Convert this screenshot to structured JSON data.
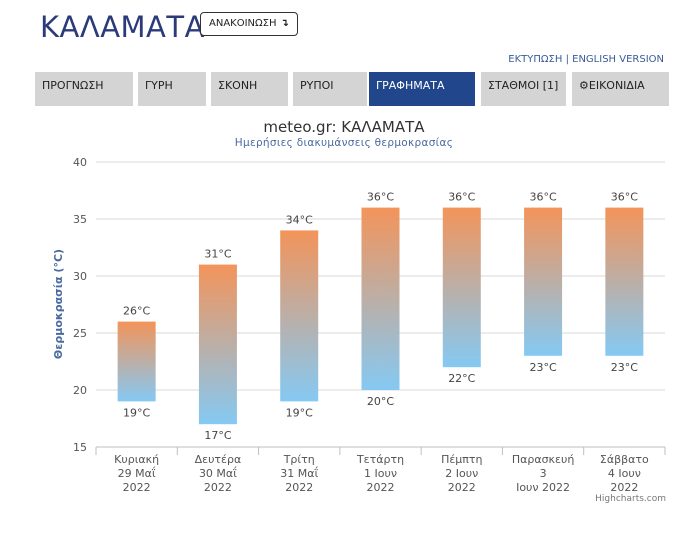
{
  "header": {
    "title": "ΚΑΛΑΜΑΤΑ",
    "announce_label": "ΑΝΑΚΟΙΝΩΣΗ",
    "announce_icon": "return-arrow-icon"
  },
  "links": {
    "print": "ΕΚΤΥΠΩΣΗ",
    "separator": "|",
    "english": "ENGLISH VERSION"
  },
  "nav": {
    "tabs": [
      {
        "label": "ΠΡΟΓΝΩΣΗ",
        "active": false
      },
      {
        "label": "ΓΥΡΗ",
        "active": false
      },
      {
        "label": "ΣΚΟΝΗ",
        "active": false
      },
      {
        "label": "ΡΥΠΟΙ",
        "active": false
      },
      {
        "label": "ΓΡΑΦΗΜΑΤΑ",
        "active": true
      },
      {
        "label": "ΣΤΑΘΜΟΙ [1]",
        "active": false
      },
      {
        "label": "ΕΙΚΟΝΙΔΙΑ",
        "active": false,
        "icon": "gear-icon"
      }
    ]
  },
  "chart_data": {
    "type": "bar",
    "title": "meteo.gr: ΚΑΛΑΜΑΤΑ",
    "subtitle": "Ημερήσιες διακυμάνσεις θερμοκρασίας",
    "ylabel": "Θερμοκρασία (°C)",
    "ylim": [
      15,
      40
    ],
    "yticks": [
      "15",
      "20",
      "25",
      "30",
      "35",
      "40"
    ],
    "categories": [
      [
        "Κυριακή",
        "29 Μαΐ",
        "2022"
      ],
      [
        "Δευτέρα",
        "30 Μαΐ",
        "2022"
      ],
      [
        "Τρίτη",
        "31 Μαΐ",
        "2022"
      ],
      [
        "Τετάρτη",
        "1 Ιουν",
        "2022"
      ],
      [
        "Πέμπτη",
        "2 Ιουν",
        "2022"
      ],
      [
        "Παρασκευή",
        "3",
        "Ιουν 2022"
      ],
      [
        "Σάββατο",
        "4 Ιουν",
        "2022"
      ]
    ],
    "low": [
      19,
      17,
      19,
      20,
      22,
      23,
      23
    ],
    "high": [
      26,
      31,
      34,
      36,
      36,
      36,
      36
    ],
    "low_labels": [
      "19°C",
      "17°C",
      "19°C",
      "20°C",
      "22°C",
      "23°C",
      "23°C"
    ],
    "high_labels": [
      "26°C",
      "31°C",
      "34°C",
      "36°C",
      "36°C",
      "36°C",
      "36°C"
    ],
    "grid": true,
    "colors": {
      "top": "#f3945a",
      "bottom": "#85c9f3",
      "axis_title": "#4a6aa0",
      "grid": "#d9d9d9"
    },
    "credits": "Highcharts.com"
  }
}
